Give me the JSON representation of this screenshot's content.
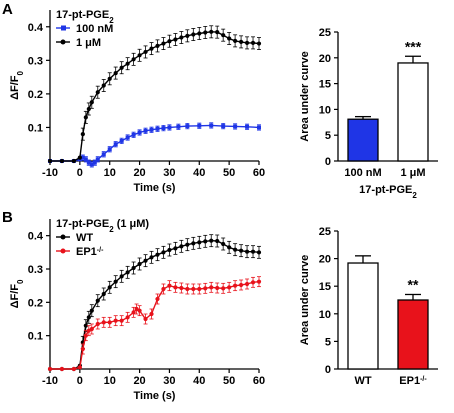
{
  "panels": [
    {
      "letter": "A"
    },
    {
      "letter": "B"
    }
  ],
  "chart_data": [
    {
      "type": "line",
      "panel": "A",
      "annotation": "17-pt-PGE",
      "annotation_sub": "2",
      "annotation_suffix": "",
      "xlabel": "Time (s)",
      "ylabel": "ΔF/F",
      "ylabel_sub": "0",
      "xlim": [
        -10,
        60
      ],
      "ylim": [
        0,
        0.45
      ],
      "xticks": [
        -10,
        0,
        10,
        20,
        30,
        40,
        50,
        60
      ],
      "yticks": [
        0.1,
        0.2,
        0.3,
        0.4
      ],
      "grid": false,
      "legend_position": "top-left",
      "series": [
        {
          "name": "100 nM",
          "color": "#1f35e6",
          "marker": "square",
          "error": 0.008,
          "points": [
            [
              -10,
              0
            ],
            [
              -6,
              0
            ],
            [
              -2,
              0
            ],
            [
              0,
              0.005
            ],
            [
              1,
              0.01
            ],
            [
              2,
              0.005
            ],
            [
              3,
              -0.005
            ],
            [
              4,
              -0.01
            ],
            [
              5,
              -0.005
            ],
            [
              6,
              0.005
            ],
            [
              8,
              0.02
            ],
            [
              10,
              0.035
            ],
            [
              12,
              0.05
            ],
            [
              14,
              0.06
            ],
            [
              16,
              0.07
            ],
            [
              18,
              0.078
            ],
            [
              20,
              0.085
            ],
            [
              22,
              0.09
            ],
            [
              24,
              0.093
            ],
            [
              26,
              0.096
            ],
            [
              28,
              0.098
            ],
            [
              30,
              0.1
            ],
            [
              33,
              0.102
            ],
            [
              36,
              0.104
            ],
            [
              40,
              0.105
            ],
            [
              44,
              0.106
            ],
            [
              48,
              0.104
            ],
            [
              52,
              0.103
            ],
            [
              56,
              0.102
            ],
            [
              60,
              0.1
            ]
          ]
        },
        {
          "name": "1 μM",
          "color": "#000000",
          "marker": "circle",
          "error": 0.018,
          "points": [
            [
              -10,
              0
            ],
            [
              -6,
              0
            ],
            [
              -2,
              0
            ],
            [
              0,
              0.01
            ],
            [
              1,
              0.08
            ],
            [
              2,
              0.13
            ],
            [
              3,
              0.155
            ],
            [
              4,
              0.175
            ],
            [
              6,
              0.205
            ],
            [
              8,
              0.225
            ],
            [
              10,
              0.245
            ],
            [
              12,
              0.262
            ],
            [
              14,
              0.278
            ],
            [
              16,
              0.29
            ],
            [
              18,
              0.303
            ],
            [
              20,
              0.315
            ],
            [
              22,
              0.325
            ],
            [
              24,
              0.335
            ],
            [
              26,
              0.343
            ],
            [
              28,
              0.35
            ],
            [
              30,
              0.357
            ],
            [
              32,
              0.362
            ],
            [
              34,
              0.368
            ],
            [
              36,
              0.373
            ],
            [
              38,
              0.377
            ],
            [
              40,
              0.38
            ],
            [
              42,
              0.383
            ],
            [
              44,
              0.385
            ],
            [
              46,
              0.384
            ],
            [
              48,
              0.375
            ],
            [
              50,
              0.365
            ],
            [
              52,
              0.358
            ],
            [
              54,
              0.355
            ],
            [
              56,
              0.352
            ],
            [
              58,
              0.352
            ],
            [
              60,
              0.35
            ]
          ]
        }
      ]
    },
    {
      "type": "bar",
      "panel": "A",
      "ylabel": "Area under curve",
      "xlabel": "17-pt-PGE",
      "xlabel_sub": "2",
      "ylim": [
        0,
        25
      ],
      "yticks": [
        0,
        5,
        10,
        15,
        20,
        25
      ],
      "categories": [
        "100 nM",
        "1 μM"
      ],
      "values": [
        8.1,
        19.0
      ],
      "errors": [
        0.5,
        1.3
      ],
      "colors": [
        "#1f35e6",
        "#ffffff"
      ],
      "significance": [
        "",
        "***"
      ]
    },
    {
      "type": "line",
      "panel": "B",
      "annotation": "17-pt-PGE",
      "annotation_sub": "2",
      "annotation_suffix": " (1 μM)",
      "xlabel": "Time (s)",
      "ylabel": "ΔF/F",
      "ylabel_sub": "0",
      "xlim": [
        -10,
        60
      ],
      "ylim": [
        0,
        0.45
      ],
      "xticks": [
        -10,
        0,
        10,
        20,
        30,
        40,
        50,
        60
      ],
      "yticks": [
        0.1,
        0.2,
        0.3,
        0.4
      ],
      "grid": false,
      "legend_position": "top-left",
      "series": [
        {
          "name": "WT",
          "color": "#000000",
          "marker": "circle",
          "error": 0.018,
          "points": [
            [
              -10,
              0
            ],
            [
              -6,
              0
            ],
            [
              -2,
              0
            ],
            [
              0,
              0.01
            ],
            [
              1,
              0.08
            ],
            [
              2,
              0.13
            ],
            [
              3,
              0.155
            ],
            [
              4,
              0.175
            ],
            [
              6,
              0.205
            ],
            [
              8,
              0.225
            ],
            [
              10,
              0.245
            ],
            [
              12,
              0.262
            ],
            [
              14,
              0.278
            ],
            [
              16,
              0.29
            ],
            [
              18,
              0.303
            ],
            [
              20,
              0.315
            ],
            [
              22,
              0.325
            ],
            [
              24,
              0.335
            ],
            [
              26,
              0.343
            ],
            [
              28,
              0.35
            ],
            [
              30,
              0.357
            ],
            [
              32,
              0.362
            ],
            [
              34,
              0.368
            ],
            [
              36,
              0.373
            ],
            [
              38,
              0.377
            ],
            [
              40,
              0.38
            ],
            [
              42,
              0.383
            ],
            [
              44,
              0.385
            ],
            [
              46,
              0.384
            ],
            [
              48,
              0.375
            ],
            [
              50,
              0.365
            ],
            [
              52,
              0.358
            ],
            [
              54,
              0.355
            ],
            [
              56,
              0.352
            ],
            [
              58,
              0.352
            ],
            [
              60,
              0.35
            ]
          ]
        },
        {
          "name": "EP1",
          "name_sup": "-/-",
          "color": "#e8121b",
          "marker": "circle",
          "error": 0.015,
          "points": [
            [
              -10,
              0
            ],
            [
              -6,
              0
            ],
            [
              -2,
              0
            ],
            [
              0,
              0.005
            ],
            [
              1,
              0.06
            ],
            [
              2,
              0.1
            ],
            [
              3,
              0.115
            ],
            [
              4,
              0.12
            ],
            [
              6,
              0.135
            ],
            [
              8,
              0.14
            ],
            [
              10,
              0.14
            ],
            [
              12,
              0.145
            ],
            [
              14,
              0.145
            ],
            [
              16,
              0.155
            ],
            [
              18,
              0.17
            ],
            [
              19,
              0.18
            ],
            [
              20,
              0.175
            ],
            [
              22,
              0.15
            ],
            [
              24,
              0.165
            ],
            [
              26,
              0.21
            ],
            [
              28,
              0.24
            ],
            [
              30,
              0.25
            ],
            [
              32,
              0.245
            ],
            [
              34,
              0.243
            ],
            [
              36,
              0.24
            ],
            [
              38,
              0.24
            ],
            [
              40,
              0.24
            ],
            [
              42,
              0.242
            ],
            [
              44,
              0.245
            ],
            [
              46,
              0.243
            ],
            [
              48,
              0.242
            ],
            [
              50,
              0.245
            ],
            [
              52,
              0.25
            ],
            [
              54,
              0.252
            ],
            [
              56,
              0.255
            ],
            [
              58,
              0.26
            ],
            [
              60,
              0.262
            ]
          ]
        }
      ]
    },
    {
      "type": "bar",
      "panel": "B",
      "ylabel": "Area under curve",
      "xlabel": "",
      "ylim": [
        0,
        25
      ],
      "yticks": [
        0,
        5,
        10,
        15,
        20,
        25
      ],
      "categories": [
        "WT",
        "EP1"
      ],
      "category_sups": [
        "",
        "-/-"
      ],
      "values": [
        19.2,
        12.5
      ],
      "errors": [
        1.3,
        1.0
      ],
      "colors": [
        "#ffffff",
        "#e8121b"
      ],
      "significance": [
        "",
        "**"
      ]
    }
  ]
}
